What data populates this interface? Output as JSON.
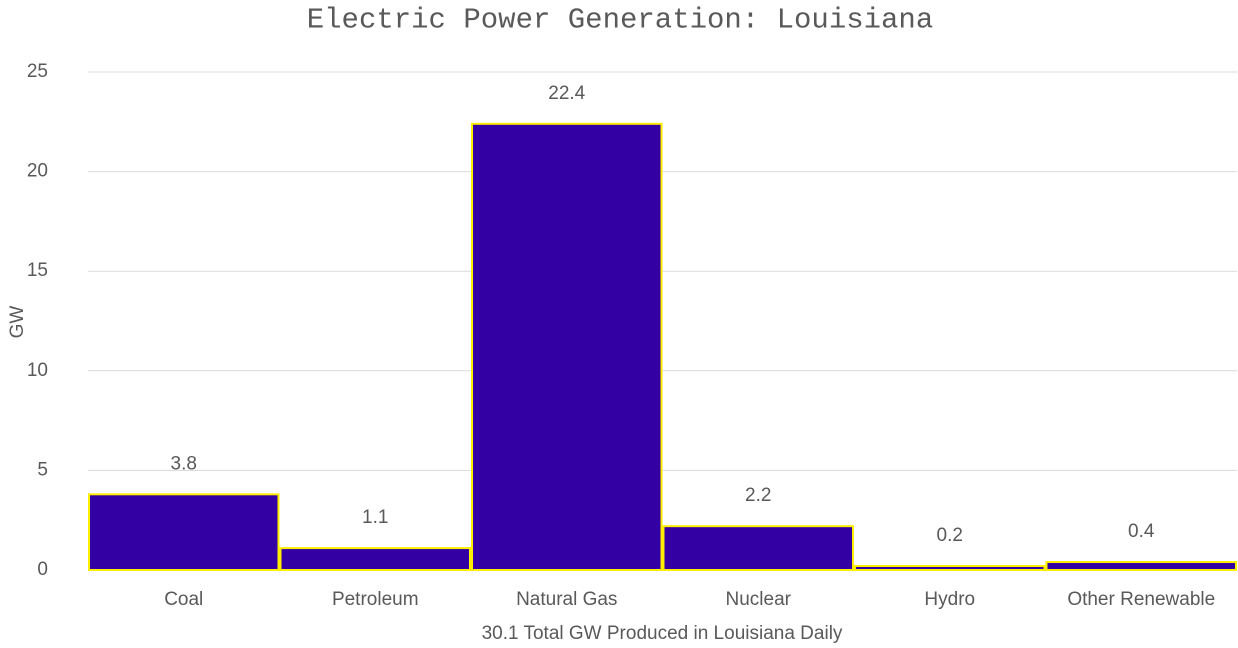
{
  "chart_data": {
    "type": "bar",
    "title": "Electric Power Generation: Louisiana",
    "xlabel": "30.1 Total GW Produced in Louisiana Daily",
    "ylabel": "GW",
    "categories": [
      "Coal",
      "Petroleum",
      "Natural Gas",
      "Nuclear",
      "Hydro",
      "Other Renewable"
    ],
    "values": [
      3.8,
      1.1,
      22.4,
      2.2,
      0.2,
      0.4
    ],
    "color": "#3200a3",
    "edgecolor": "#ffee00",
    "ylim": [
      0,
      25
    ],
    "yticks": [
      0,
      5,
      10,
      15,
      20,
      25
    ],
    "grid": true
  }
}
